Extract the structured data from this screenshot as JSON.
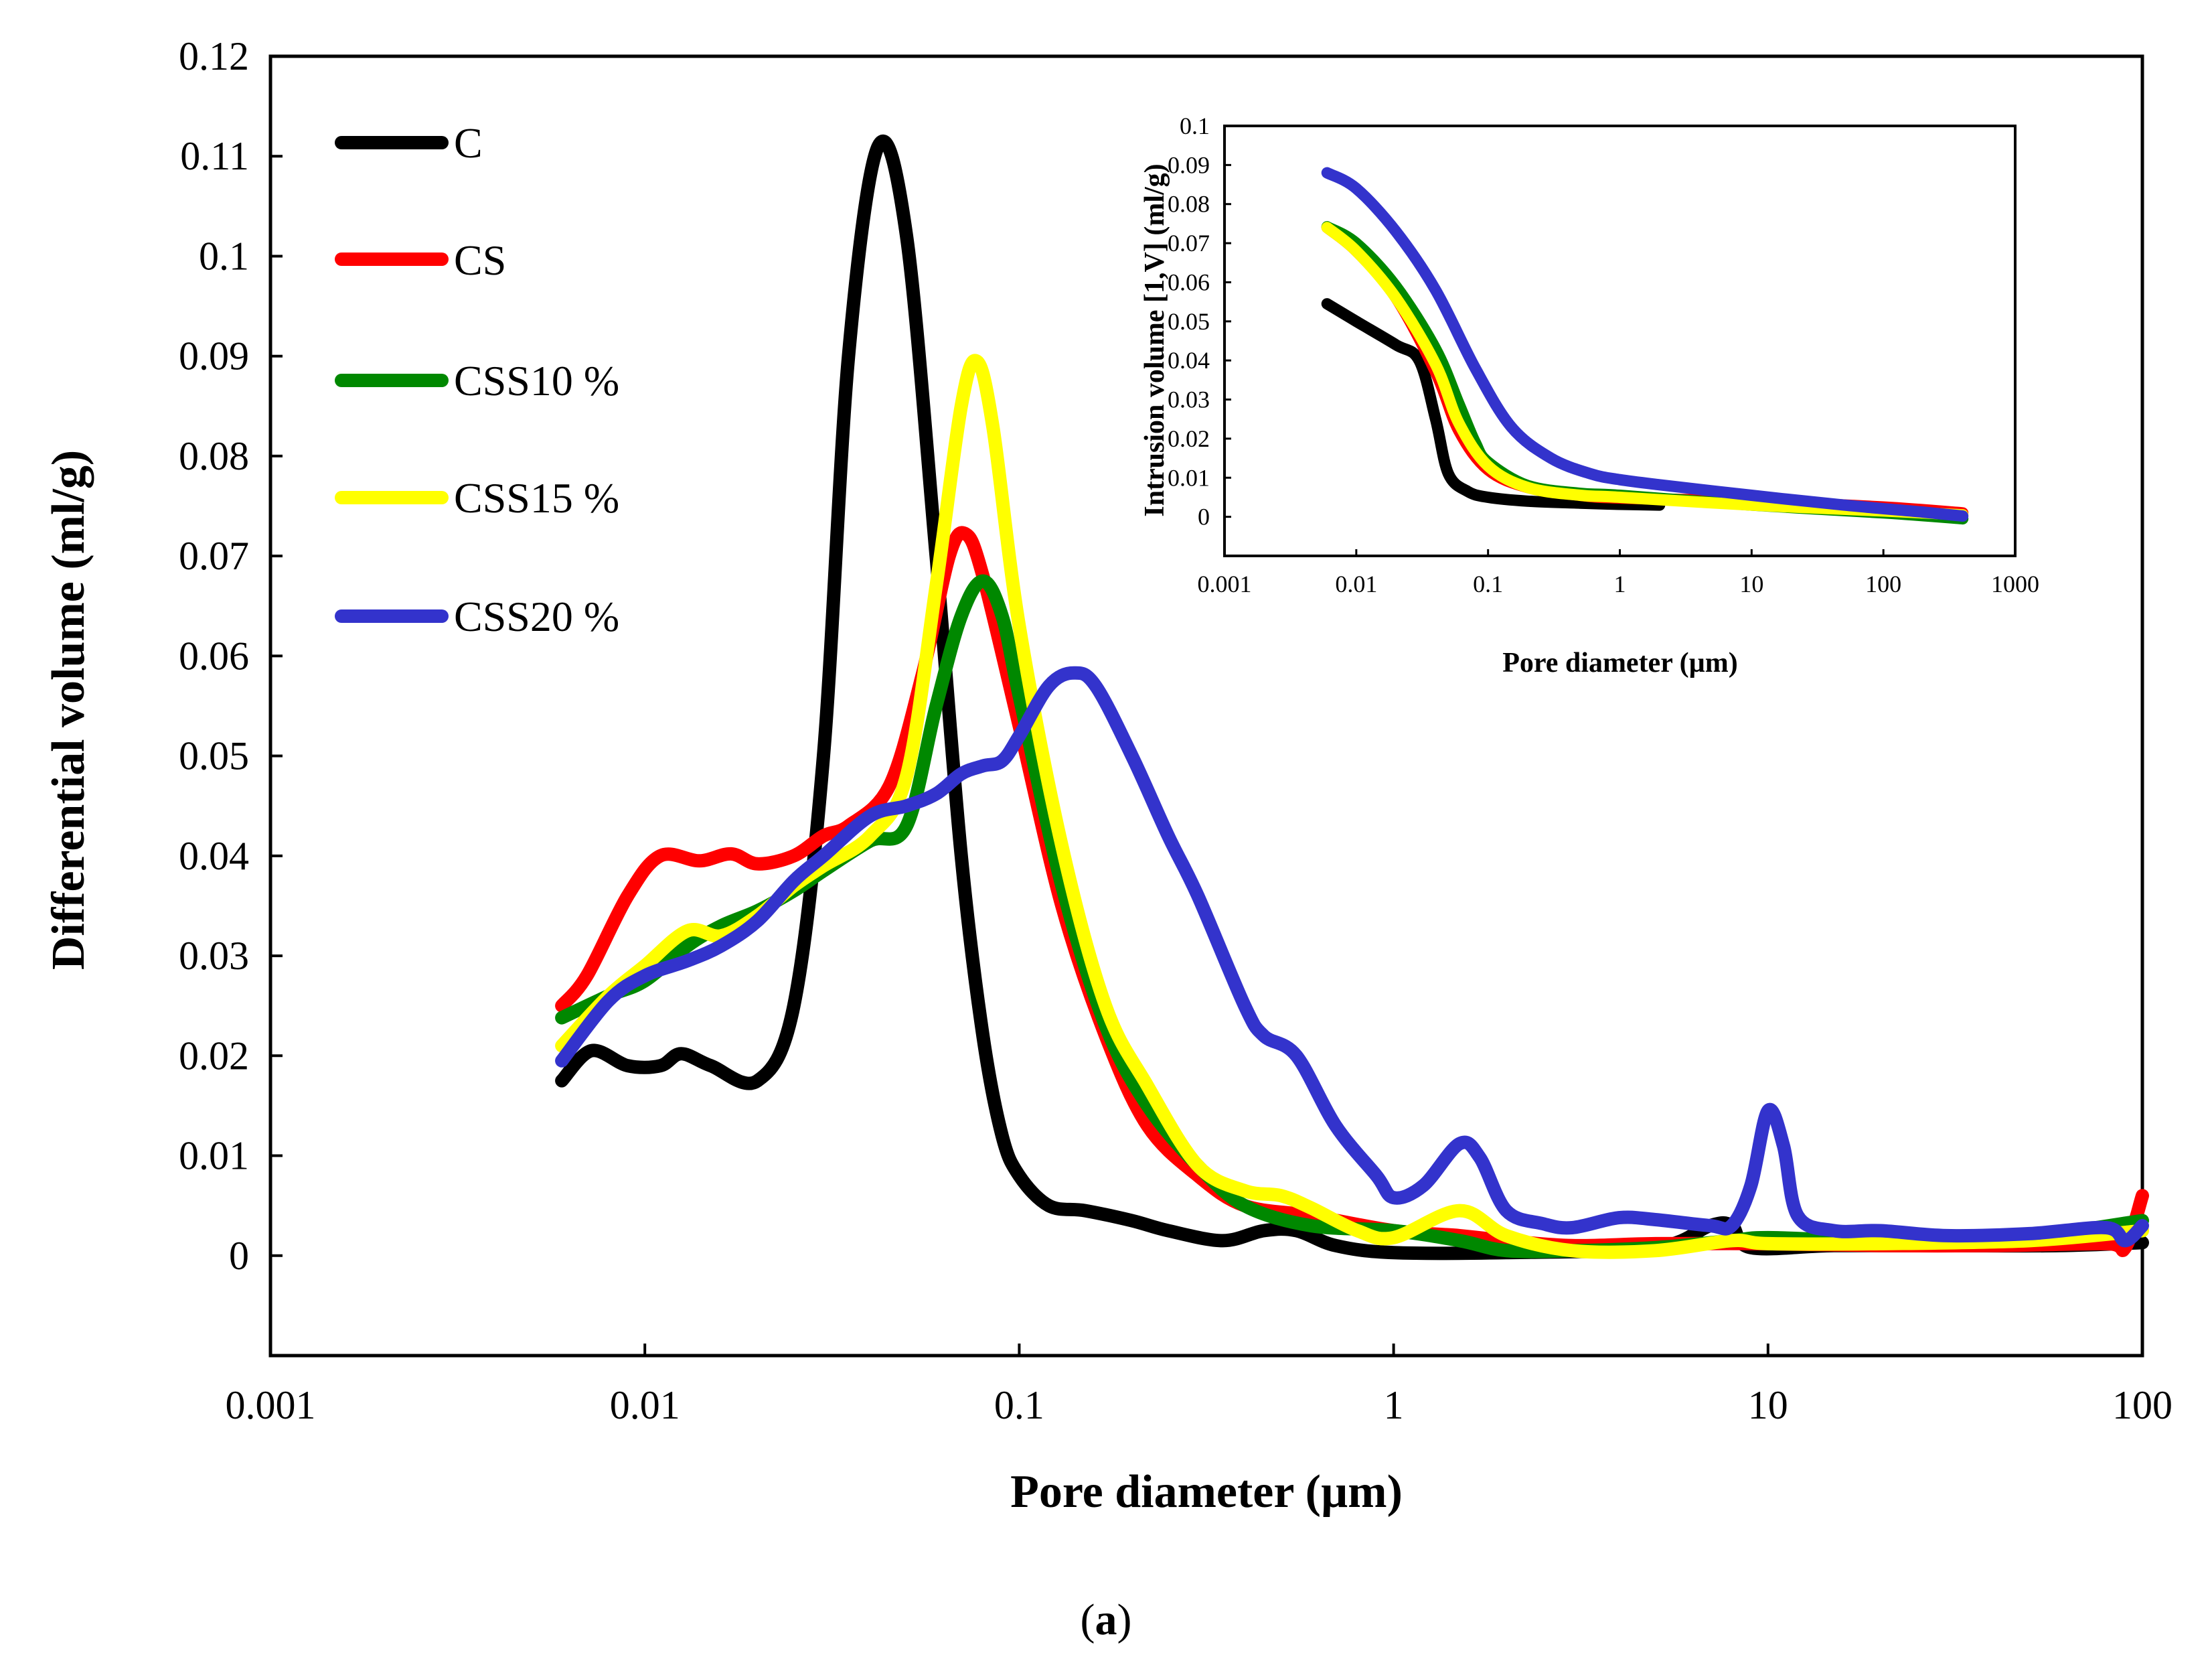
{
  "caption": {
    "open": "(",
    "letter": "a",
    "close": ")"
  },
  "chart_data": [
    {
      "type": "line",
      "title": "",
      "xlabel": "Pore diameter (µm)",
      "ylabel": "Differential volume (ml/g)",
      "xscale": "log",
      "xlim": [
        0.001,
        100
      ],
      "ylim": [
        -0.01,
        0.12
      ],
      "xticks": [
        0.001,
        0.01,
        0.1,
        1,
        10,
        100
      ],
      "xtick_labels": [
        "0.001",
        "0.01",
        "0.1",
        "1",
        "10",
        "100"
      ],
      "yticks": [
        0,
        0.01,
        0.02,
        0.03,
        0.04,
        0.05,
        0.06,
        0.07,
        0.08,
        0.09,
        0.1,
        0.11,
        0.12
      ],
      "ytick_labels": [
        "0",
        "0.01",
        "0.02",
        "0.03",
        "0.04",
        "0.05",
        "0.06",
        "0.07",
        "0.08",
        "0.09",
        "0.1",
        "0.11",
        "0.12"
      ],
      "grid": false,
      "legend_position": "top-left",
      "series": [
        {
          "name": "C",
          "color": "#000000",
          "points": [
            [
              0.006,
              0.0175
            ],
            [
              0.0072,
              0.0205
            ],
            [
              0.009,
              0.019
            ],
            [
              0.011,
              0.019
            ],
            [
              0.0125,
              0.0202
            ],
            [
              0.015,
              0.019
            ],
            [
              0.02,
              0.0175
            ],
            [
              0.025,
              0.025
            ],
            [
              0.03,
              0.05
            ],
            [
              0.035,
              0.09
            ],
            [
              0.042,
              0.111
            ],
            [
              0.05,
              0.102
            ],
            [
              0.06,
              0.07
            ],
            [
              0.07,
              0.04
            ],
            [
              0.08,
              0.022
            ],
            [
              0.09,
              0.012
            ],
            [
              0.1,
              0.008
            ],
            [
              0.12,
              0.005
            ],
            [
              0.15,
              0.0045
            ],
            [
              0.2,
              0.0035
            ],
            [
              0.25,
              0.0025
            ],
            [
              0.35,
              0.0015
            ],
            [
              0.45,
              0.0025
            ],
            [
              0.55,
              0.0025
            ],
            [
              0.7,
              0.001
            ],
            [
              1,
              0.0003
            ],
            [
              2,
              0.0003
            ],
            [
              5,
              0.0008
            ],
            [
              7,
              0.003
            ],
            [
              8,
              0.003
            ],
            [
              9,
              0.0008
            ],
            [
              15,
              0.001
            ],
            [
              30,
              0.001
            ],
            [
              60,
              0.001
            ],
            [
              100,
              0.0013
            ]
          ]
        },
        {
          "name": "CS",
          "color": "#ff0000",
          "points": [
            [
              0.006,
              0.025
            ],
            [
              0.007,
              0.028
            ],
            [
              0.009,
              0.036
            ],
            [
              0.011,
              0.04
            ],
            [
              0.014,
              0.0395
            ],
            [
              0.017,
              0.0402
            ],
            [
              0.02,
              0.0392
            ],
            [
              0.025,
              0.04
            ],
            [
              0.03,
              0.042
            ],
            [
              0.035,
              0.043
            ],
            [
              0.045,
              0.047
            ],
            [
              0.055,
              0.058
            ],
            [
              0.065,
              0.07
            ],
            [
              0.072,
              0.0722
            ],
            [
              0.08,
              0.068
            ],
            [
              0.1,
              0.053
            ],
            [
              0.13,
              0.035
            ],
            [
              0.17,
              0.022
            ],
            [
              0.22,
              0.013
            ],
            [
              0.3,
              0.008
            ],
            [
              0.4,
              0.005
            ],
            [
              0.6,
              0.004
            ],
            [
              1,
              0.0025
            ],
            [
              1.5,
              0.002
            ],
            [
              2,
              0.0015
            ],
            [
              3,
              0.001
            ],
            [
              5,
              0.0012
            ],
            [
              10,
              0.0012
            ],
            [
              20,
              0.001
            ],
            [
              40,
              0.001
            ],
            [
              80,
              0.0012
            ],
            [
              90,
              0.0008
            ],
            [
              100,
              0.006
            ]
          ]
        },
        {
          "name": "CSS10 %",
          "color": "#008800",
          "points": [
            [
              0.006,
              0.0238
            ],
            [
              0.008,
              0.026
            ],
            [
              0.01,
              0.0275
            ],
            [
              0.013,
              0.031
            ],
            [
              0.016,
              0.033
            ],
            [
              0.02,
              0.0345
            ],
            [
              0.025,
              0.0365
            ],
            [
              0.03,
              0.0385
            ],
            [
              0.04,
              0.0415
            ],
            [
              0.05,
              0.043
            ],
            [
              0.06,
              0.055
            ],
            [
              0.07,
              0.064
            ],
            [
              0.08,
              0.0675
            ],
            [
              0.09,
              0.064
            ],
            [
              0.1,
              0.056
            ],
            [
              0.13,
              0.037
            ],
            [
              0.17,
              0.023
            ],
            [
              0.22,
              0.015
            ],
            [
              0.3,
              0.009
            ],
            [
              0.4,
              0.005
            ],
            [
              0.6,
              0.003
            ],
            [
              1,
              0.0025
            ],
            [
              1.5,
              0.0015
            ],
            [
              2,
              0.0005
            ],
            [
              3,
              0.0005
            ],
            [
              5,
              0.0008
            ],
            [
              8,
              0.0015
            ],
            [
              10,
              0.0018
            ],
            [
              20,
              0.0015
            ],
            [
              50,
              0.002
            ],
            [
              100,
              0.0035
            ]
          ]
        },
        {
          "name": "CSS15 %",
          "color": "#ffff00",
          "points": [
            [
              0.006,
              0.021
            ],
            [
              0.008,
              0.026
            ],
            [
              0.01,
              0.029
            ],
            [
              0.013,
              0.0325
            ],
            [
              0.016,
              0.032
            ],
            [
              0.02,
              0.034
            ],
            [
              0.025,
              0.037
            ],
            [
              0.03,
              0.039
            ],
            [
              0.04,
              0.042
            ],
            [
              0.05,
              0.048
            ],
            [
              0.06,
              0.067
            ],
            [
              0.07,
              0.085
            ],
            [
              0.077,
              0.0895
            ],
            [
              0.085,
              0.083
            ],
            [
              0.1,
              0.063
            ],
            [
              0.13,
              0.041
            ],
            [
              0.17,
              0.025
            ],
            [
              0.22,
              0.017
            ],
            [
              0.3,
              0.009
            ],
            [
              0.4,
              0.0065
            ],
            [
              0.5,
              0.006
            ],
            [
              0.6,
              0.0048
            ],
            [
              0.8,
              0.0025
            ],
            [
              1,
              0.0018
            ],
            [
              1.5,
              0.0045
            ],
            [
              2,
              0.002
            ],
            [
              3,
              0.0005
            ],
            [
              5,
              0.0005
            ],
            [
              8,
              0.0015
            ],
            [
              10,
              0.0012
            ],
            [
              20,
              0.0012
            ],
            [
              50,
              0.0015
            ],
            [
              100,
              0.0025
            ]
          ]
        },
        {
          "name": "CSS20 %",
          "color": "#3333cc",
          "points": [
            [
              0.006,
              0.0195
            ],
            [
              0.008,
              0.0255
            ],
            [
              0.01,
              0.028
            ],
            [
              0.013,
              0.0295
            ],
            [
              0.016,
              0.031
            ],
            [
              0.02,
              0.0335
            ],
            [
              0.025,
              0.0375
            ],
            [
              0.03,
              0.04
            ],
            [
              0.04,
              0.044
            ],
            [
              0.05,
              0.045
            ],
            [
              0.06,
              0.0462
            ],
            [
              0.07,
              0.0482
            ],
            [
              0.08,
              0.049
            ],
            [
              0.09,
              0.0495
            ],
            [
              0.1,
              0.052
            ],
            [
              0.12,
              0.057
            ],
            [
              0.14,
              0.0583
            ],
            [
              0.16,
              0.057
            ],
            [
              0.2,
              0.05
            ],
            [
              0.25,
              0.042
            ],
            [
              0.3,
              0.036
            ],
            [
              0.4,
              0.025
            ],
            [
              0.45,
              0.022
            ],
            [
              0.55,
              0.02
            ],
            [
              0.7,
              0.013
            ],
            [
              0.9,
              0.008
            ],
            [
              1,
              0.0058
            ],
            [
              1.2,
              0.007
            ],
            [
              1.5,
              0.0112
            ],
            [
              1.7,
              0.0098
            ],
            [
              2,
              0.0045
            ],
            [
              2.5,
              0.0032
            ],
            [
              3,
              0.0028
            ],
            [
              4,
              0.0038
            ],
            [
              5,
              0.0036
            ],
            [
              7,
              0.003
            ],
            [
              8,
              0.003
            ],
            [
              9,
              0.007
            ],
            [
              10,
              0.0145
            ],
            [
              11,
              0.011
            ],
            [
              12,
              0.004
            ],
            [
              15,
              0.0025
            ],
            [
              20,
              0.0025
            ],
            [
              30,
              0.002
            ],
            [
              50,
              0.0022
            ],
            [
              80,
              0.0028
            ],
            [
              90,
              0.0015
            ],
            [
              100,
              0.003
            ]
          ]
        }
      ]
    },
    {
      "type": "line",
      "title": "",
      "xlabel": "Pore diameter (µm)",
      "ylabel": "Intrusion volume [1,V] (ml/g)",
      "xscale": "log",
      "xlim": [
        0.001,
        1000
      ],
      "ylim": [
        -0.01,
        0.1
      ],
      "xticks": [
        0.001,
        0.01,
        0.1,
        1,
        10,
        100,
        1000
      ],
      "xtick_labels": [
        "0.001",
        "0.01",
        "0.1",
        "1",
        "10",
        "100",
        "1000"
      ],
      "yticks": [
        0,
        0.01,
        0.02,
        0.03,
        0.04,
        0.05,
        0.06,
        0.07,
        0.08,
        0.09,
        0.1
      ],
      "ytick_labels": [
        "0",
        "0.01",
        "0.02",
        "0.03",
        "0.04",
        "0.05",
        "0.06",
        "0.07",
        "0.08",
        "0.09",
        "0.1"
      ],
      "grid": false,
      "series": [
        {
          "name": "C",
          "color": "#000000",
          "points": [
            [
              0.006,
              0.0545
            ],
            [
              0.01,
              0.05
            ],
            [
              0.02,
              0.044
            ],
            [
              0.03,
              0.04
            ],
            [
              0.04,
              0.025
            ],
            [
              0.05,
              0.011
            ],
            [
              0.07,
              0.0065
            ],
            [
              0.1,
              0.005
            ],
            [
              0.2,
              0.004
            ],
            [
              0.5,
              0.0035
            ],
            [
              1,
              0.0032
            ],
            [
              2,
              0.003
            ]
          ]
        },
        {
          "name": "CS",
          "color": "#ff0000",
          "points": [
            [
              0.006,
              0.074
            ],
            [
              0.01,
              0.068
            ],
            [
              0.02,
              0.056
            ],
            [
              0.04,
              0.037
            ],
            [
              0.06,
              0.022
            ],
            [
              0.1,
              0.012
            ],
            [
              0.2,
              0.0075
            ],
            [
              0.5,
              0.0055
            ],
            [
              1,
              0.0048
            ],
            [
              10,
              0.004
            ],
            [
              100,
              0.0025
            ],
            [
              400,
              0.001
            ]
          ]
        },
        {
          "name": "CSS10 %",
          "color": "#008800",
          "points": [
            [
              0.006,
              0.0742
            ],
            [
              0.01,
              0.07
            ],
            [
              0.02,
              0.059
            ],
            [
              0.04,
              0.043
            ],
            [
              0.06,
              0.029
            ],
            [
              0.08,
              0.019
            ],
            [
              0.1,
              0.014
            ],
            [
              0.2,
              0.008
            ],
            [
              0.5,
              0.006
            ],
            [
              1,
              0.0055
            ],
            [
              10,
              0.003
            ],
            [
              100,
              0.001
            ],
            [
              400,
              -0.0005
            ]
          ]
        },
        {
          "name": "CSS15 %",
          "color": "#ffff00",
          "points": [
            [
              0.006,
              0.074
            ],
            [
              0.01,
              0.068
            ],
            [
              0.02,
              0.056
            ],
            [
              0.04,
              0.039
            ],
            [
              0.06,
              0.024
            ],
            [
              0.1,
              0.013
            ],
            [
              0.2,
              0.0075
            ],
            [
              0.5,
              0.0055
            ],
            [
              1,
              0.005
            ],
            [
              10,
              0.003
            ],
            [
              100,
              0.0015
            ],
            [
              400,
              0.0005
            ]
          ]
        },
        {
          "name": "CSS20 %",
          "color": "#3333cc",
          "points": [
            [
              0.006,
              0.088
            ],
            [
              0.01,
              0.084
            ],
            [
              0.02,
              0.073
            ],
            [
              0.04,
              0.058
            ],
            [
              0.08,
              0.038
            ],
            [
              0.15,
              0.023
            ],
            [
              0.3,
              0.015
            ],
            [
              0.6,
              0.011
            ],
            [
              1,
              0.0095
            ],
            [
              2,
              0.0082
            ],
            [
              10,
              0.0055
            ],
            [
              50,
              0.003
            ],
            [
              200,
              0.0012
            ],
            [
              400,
              0.0002
            ]
          ]
        }
      ]
    }
  ]
}
